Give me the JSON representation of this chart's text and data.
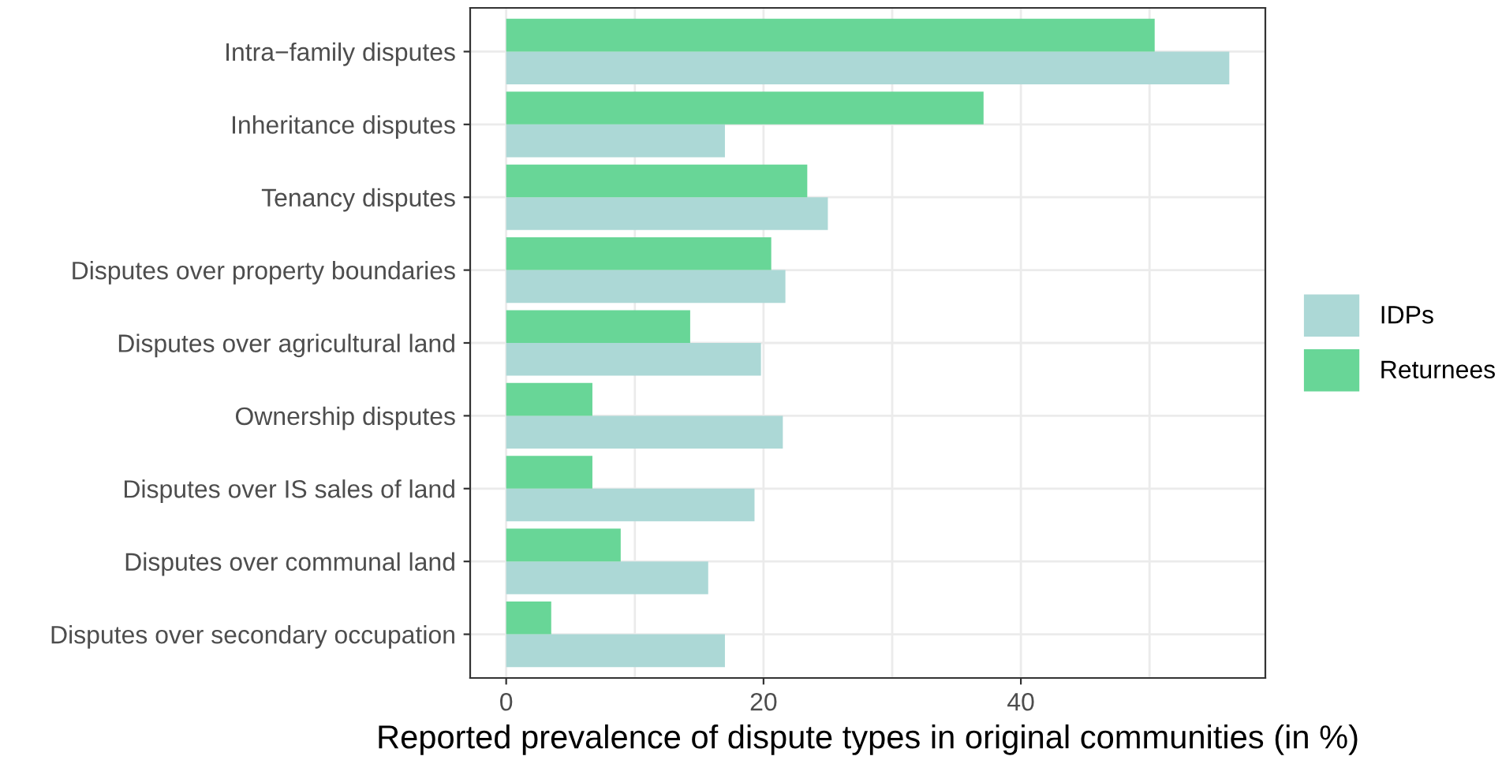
{
  "chart_data": {
    "type": "bar",
    "orientation": "horizontal",
    "xlabel": "Reported prevalence of dispute types in original communities (in %)",
    "categories": [
      "Intra−family disputes",
      "Inheritance disputes",
      "Tenancy disputes",
      "Disputes over property boundaries",
      "Disputes over agricultural land",
      "Ownership disputes",
      "Disputes over IS sales of land",
      "Disputes over communal land",
      "Disputes over secondary occupation"
    ],
    "series": [
      {
        "name": "IDPs",
        "color": "#acd8d6",
        "values": [
          56.2,
          17.0,
          25.0,
          21.7,
          19.8,
          21.5,
          19.3,
          15.7,
          17.0
        ]
      },
      {
        "name": "Returnees",
        "color": "#68d697",
        "values": [
          50.4,
          37.1,
          23.4,
          20.6,
          14.3,
          6.7,
          6.7,
          8.9,
          3.5
        ]
      }
    ],
    "xlim": [
      -2.8,
      59.0
    ],
    "xticks": [
      0,
      {
        "value": 10,
        "label": null
      },
      20,
      {
        "value": 30,
        "label": null
      },
      40,
      {
        "value": 50,
        "label": null
      }
    ],
    "grid": true,
    "legend": "right"
  }
}
